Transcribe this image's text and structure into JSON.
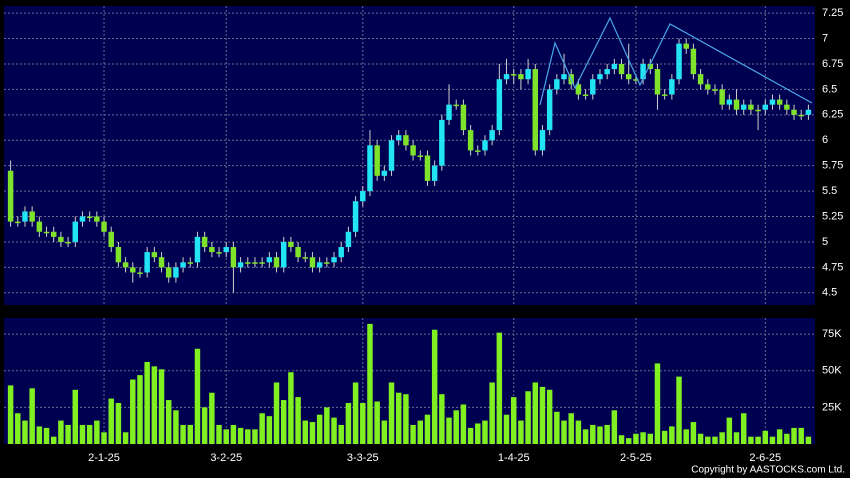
{
  "chart_data": {
    "type": "candlestick",
    "source": "Copyright by AASTOCKS.com Ltd.",
    "categories": [
      null,
      null,
      null,
      null,
      null,
      null,
      null,
      null,
      null,
      null,
      null,
      null,
      null,
      "2-1-25",
      null,
      null,
      null,
      null,
      null,
      null,
      null,
      null,
      null,
      null,
      null,
      null,
      null,
      null,
      null,
      null,
      "3-2-25",
      null,
      null,
      null,
      null,
      null,
      null,
      null,
      null,
      null,
      null,
      null,
      null,
      null,
      null,
      null,
      null,
      null,
      null,
      "3-3-25",
      null,
      null,
      null,
      null,
      null,
      null,
      null,
      null,
      null,
      null,
      null,
      null,
      null,
      null,
      null,
      null,
      null,
      null,
      null,
      null,
      "1-4-25",
      null,
      null,
      null,
      null,
      null,
      null,
      null,
      null,
      null,
      null,
      null,
      null,
      null,
      null,
      null,
      null,
      "2-5-25",
      null,
      null,
      null,
      null,
      null,
      null,
      null,
      null,
      null,
      null,
      null,
      null,
      null,
      null,
      null,
      null,
      null,
      "2-6-25",
      null,
      null,
      null,
      null,
      null,
      null
    ],
    "open": [
      5.7,
      5.2,
      5.2,
      5.3,
      5.2,
      5.1,
      5.1,
      5.05,
      5.0,
      5.0,
      5.2,
      5.25,
      5.25,
      5.2,
      5.1,
      4.95,
      4.8,
      4.75,
      4.7,
      4.7,
      4.9,
      4.85,
      4.75,
      4.65,
      4.75,
      4.8,
      4.8,
      5.05,
      4.95,
      4.9,
      4.9,
      4.95,
      4.75,
      4.8,
      4.8,
      4.8,
      4.8,
      4.85,
      4.75,
      5.0,
      4.95,
      4.85,
      4.85,
      4.75,
      4.8,
      4.8,
      4.85,
      4.95,
      5.1,
      5.4,
      5.5,
      5.95,
      5.65,
      5.7,
      6.0,
      6.05,
      5.95,
      5.85,
      5.85,
      5.6,
      5.75,
      6.2,
      6.35,
      6.35,
      6.1,
      5.9,
      5.9,
      6.0,
      6.1,
      6.6,
      6.65,
      6.65,
      6.6,
      6.7,
      5.9,
      6.1,
      6.5,
      6.6,
      6.65,
      6.55,
      6.45,
      6.45,
      6.6,
      6.65,
      6.7,
      6.75,
      6.65,
      6.6,
      6.6,
      6.75,
      6.7,
      6.45,
      6.45,
      6.6,
      6.95,
      6.9,
      6.65,
      6.55,
      6.5,
      6.5,
      6.35,
      6.4,
      6.3,
      6.35,
      6.3,
      6.3,
      6.35,
      6.4,
      6.35,
      6.3,
      6.25,
      6.25
    ],
    "high": [
      5.8,
      5.25,
      5.35,
      5.35,
      5.25,
      5.15,
      5.15,
      5.1,
      5.05,
      5.25,
      5.3,
      5.3,
      5.3,
      5.25,
      5.15,
      5.0,
      4.85,
      4.8,
      4.75,
      4.95,
      4.95,
      4.9,
      4.8,
      4.8,
      4.85,
      4.85,
      5.1,
      5.1,
      5.0,
      4.95,
      5.0,
      5.0,
      4.85,
      4.85,
      4.85,
      4.85,
      4.9,
      4.9,
      5.05,
      5.05,
      5.0,
      4.9,
      4.9,
      4.85,
      4.85,
      4.9,
      5.0,
      5.15,
      5.45,
      5.55,
      6.1,
      6.0,
      5.75,
      6.05,
      6.1,
      6.1,
      6.0,
      5.9,
      5.9,
      5.8,
      6.25,
      6.55,
      6.4,
      6.4,
      6.15,
      5.95,
      6.05,
      6.15,
      6.75,
      6.8,
      6.7,
      6.7,
      6.8,
      6.75,
      6.15,
      6.55,
      6.65,
      6.85,
      6.7,
      6.6,
      6.5,
      6.65,
      6.7,
      6.75,
      6.8,
      6.8,
      6.95,
      6.65,
      6.8,
      6.8,
      6.75,
      6.5,
      6.65,
      7.0,
      7.0,
      6.95,
      6.7,
      6.6,
      6.55,
      6.55,
      6.45,
      6.5,
      6.4,
      6.4,
      6.35,
      6.4,
      6.45,
      6.45,
      6.4,
      6.35,
      6.3,
      6.35
    ],
    "low": [
      5.15,
      5.15,
      5.15,
      5.15,
      5.05,
      5.05,
      5.0,
      4.95,
      4.95,
      4.95,
      5.15,
      5.2,
      5.15,
      5.05,
      4.9,
      4.75,
      4.7,
      4.6,
      4.65,
      4.65,
      4.8,
      4.7,
      4.6,
      4.6,
      4.7,
      4.75,
      4.75,
      4.9,
      4.85,
      4.85,
      4.85,
      4.5,
      4.7,
      4.75,
      4.75,
      4.75,
      4.75,
      4.7,
      4.7,
      4.9,
      4.8,
      4.8,
      4.7,
      4.7,
      4.75,
      4.75,
      4.8,
      4.9,
      5.05,
      5.35,
      5.45,
      5.6,
      5.6,
      5.65,
      5.95,
      5.9,
      5.8,
      5.8,
      5.55,
      5.55,
      5.7,
      6.15,
      6.3,
      6.05,
      5.85,
      5.85,
      5.85,
      5.95,
      6.05,
      6.55,
      6.55,
      6.5,
      6.55,
      5.85,
      5.85,
      6.05,
      6.45,
      6.55,
      6.5,
      6.4,
      6.4,
      6.4,
      6.55,
      6.6,
      6.65,
      6.6,
      6.55,
      6.55,
      6.55,
      6.65,
      6.3,
      6.4,
      6.4,
      6.55,
      6.85,
      6.6,
      6.5,
      6.45,
      6.45,
      6.3,
      6.3,
      6.25,
      6.25,
      6.25,
      6.1,
      6.25,
      6.3,
      6.3,
      6.25,
      6.2,
      6.2,
      6.2
    ],
    "close": [
      5.2,
      5.2,
      5.3,
      5.2,
      5.1,
      5.1,
      5.05,
      5.0,
      5.0,
      5.2,
      5.25,
      5.25,
      5.2,
      5.1,
      4.95,
      4.8,
      4.75,
      4.7,
      4.7,
      4.9,
      4.85,
      4.75,
      4.65,
      4.75,
      4.8,
      4.8,
      5.05,
      4.95,
      4.9,
      4.9,
      4.95,
      4.75,
      4.8,
      4.8,
      4.8,
      4.8,
      4.85,
      4.75,
      5.0,
      4.95,
      4.85,
      4.85,
      4.75,
      4.8,
      4.8,
      4.85,
      4.95,
      5.1,
      5.4,
      5.5,
      5.95,
      5.65,
      5.7,
      6.0,
      6.05,
      5.95,
      5.85,
      5.85,
      5.6,
      5.75,
      6.2,
      6.35,
      6.35,
      6.1,
      5.9,
      5.9,
      6.0,
      6.1,
      6.6,
      6.65,
      6.65,
      6.6,
      6.7,
      5.9,
      6.1,
      6.5,
      6.6,
      6.65,
      6.55,
      6.45,
      6.45,
      6.6,
      6.65,
      6.7,
      6.75,
      6.65,
      6.6,
      6.6,
      6.75,
      6.7,
      6.45,
      6.45,
      6.6,
      6.95,
      6.9,
      6.65,
      6.55,
      6.5,
      6.5,
      6.35,
      6.4,
      6.3,
      6.35,
      6.3,
      6.3,
      6.35,
      6.4,
      6.35,
      6.3,
      6.25,
      6.25,
      6.3
    ],
    "volume": [
      40000,
      21000,
      16000,
      38000,
      12000,
      11000,
      5000,
      16000,
      13000,
      37000,
      13000,
      13000,
      16000,
      8000,
      31000,
      28000,
      8000,
      44000,
      47000,
      56000,
      53000,
      51000,
      30000,
      23000,
      13000,
      13000,
      65000,
      25000,
      35000,
      13000,
      10000,
      13000,
      11000,
      10000,
      10000,
      21000,
      19000,
      42000,
      30000,
      49000,
      32000,
      16000,
      15000,
      20000,
      25000,
      18000,
      13000,
      28000,
      42000,
      28000,
      82000,
      29000,
      16000,
      42000,
      35000,
      34000,
      13000,
      16000,
      20000,
      78000,
      34000,
      18000,
      23000,
      27000,
      11000,
      14000,
      16000,
      42000,
      76000,
      20000,
      32000,
      16000,
      36000,
      42000,
      39000,
      37000,
      22000,
      16000,
      21000,
      16000,
      10000,
      13000,
      12000,
      13000,
      23000,
      6000,
      4000,
      7000,
      8000,
      7000,
      55000,
      9000,
      12000,
      46000,
      10000,
      15000,
      7000,
      5000,
      5000,
      8000,
      18000,
      8000,
      21000,
      5000,
      5000,
      9000,
      5000,
      10000,
      7000,
      11000,
      11000,
      5000
    ],
    "up_color": "#22e4f4",
    "down_color": "#7ee32a",
    "volume_color": "#80f020",
    "ylim": [
      4.38,
      7.32
    ],
    "yticks": [
      4.5,
      4.75,
      5,
      5.25,
      5.5,
      5.75,
      6,
      6.25,
      6.5,
      6.75,
      7,
      7.25
    ],
    "y2lim": [
      0,
      86000
    ],
    "y2ticks": [
      {
        "value": 25000,
        "label": "25K"
      },
      {
        "value": 50000,
        "label": "50K"
      },
      {
        "value": 75000,
        "label": "75K"
      }
    ],
    "grid": true
  }
}
